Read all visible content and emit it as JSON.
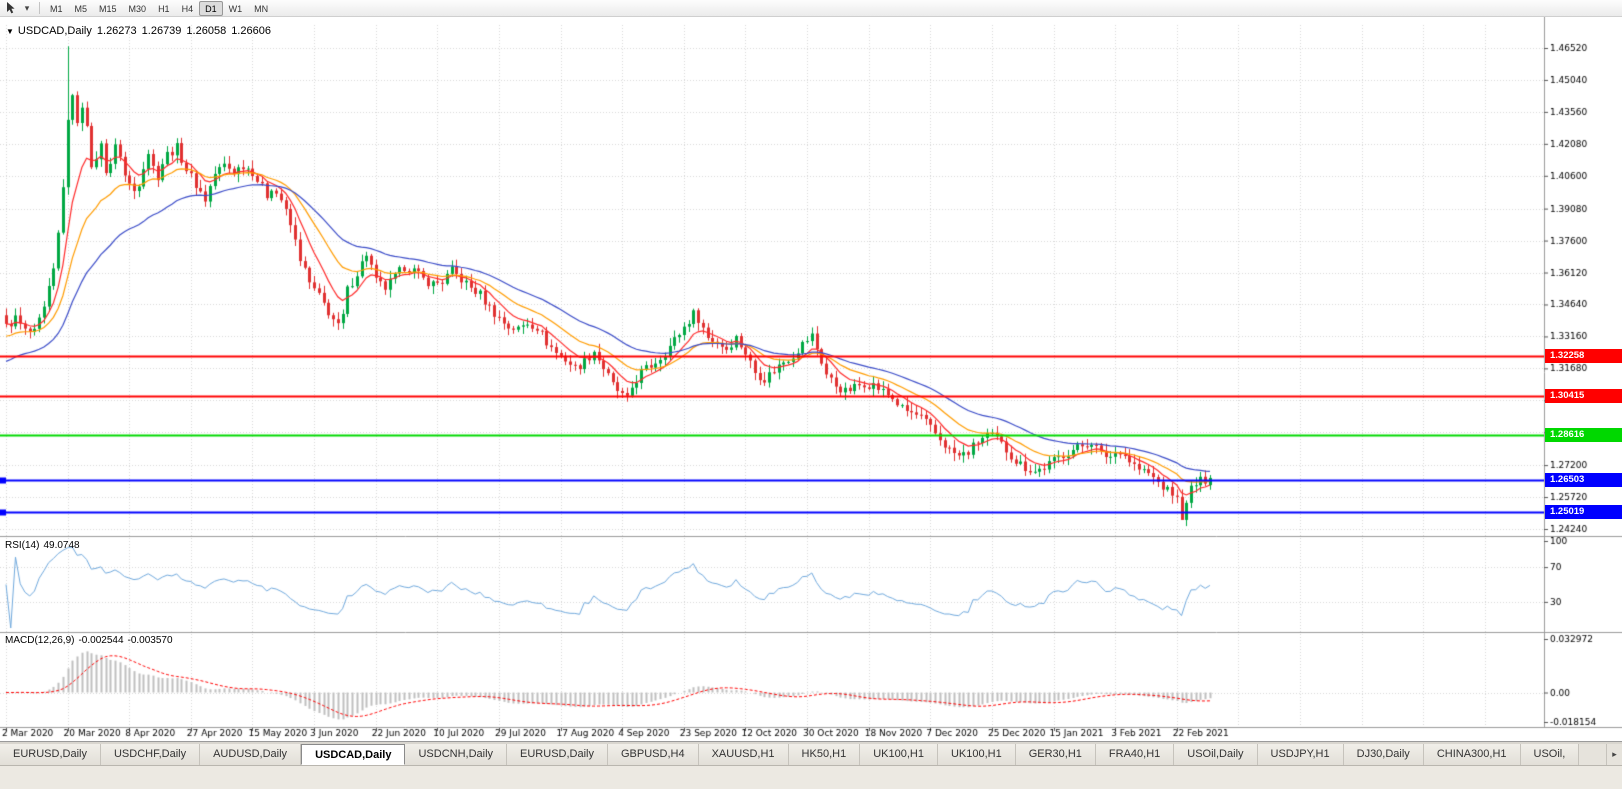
{
  "toolbar": {
    "timeframes": [
      "M1",
      "M5",
      "M15",
      "M30",
      "H1",
      "H4",
      "D1",
      "W1",
      "MN"
    ],
    "active_timeframe": "D1",
    "cursor_icon": "cursor-arrow-icon",
    "dropdown_glyph": "▾"
  },
  "chart": {
    "symbol": "USDCAD,Daily",
    "marker_glyph": "▼",
    "ohlc": {
      "open": "1.26273",
      "high": "1.26739",
      "low": "1.26058",
      "close": "1.26606"
    }
  },
  "rsi_panel": {
    "label": "RSI(14)",
    "value": "49.0748"
  },
  "macd_panel": {
    "label": "MACD(12,26,9)",
    "value_main": "-0.002544",
    "value_signal": "-0.003570"
  },
  "chart_data": {
    "type": "candlestick",
    "symbol": "USDCAD",
    "timeframe": "Daily",
    "bars": 255,
    "last_candle": {
      "open": 1.26273,
      "high": 1.26739,
      "low": 1.26058,
      "close": 1.26606
    },
    "forced_points": {
      "high_bar": 13,
      "high": 1.466,
      "low_bar": 248,
      "low": 1.2468
    },
    "close_anchors": [
      [
        0,
        1.336
      ],
      [
        2,
        1.34
      ],
      [
        4,
        1.334
      ],
      [
        6,
        1.333
      ],
      [
        8,
        1.344
      ],
      [
        10,
        1.362
      ],
      [
        11,
        1.379
      ],
      [
        12,
        1.402
      ],
      [
        13,
        1.43
      ],
      [
        14,
        1.445
      ],
      [
        15,
        1.429
      ],
      [
        16,
        1.439
      ],
      [
        17,
        1.431
      ],
      [
        18,
        1.408
      ],
      [
        19,
        1.415
      ],
      [
        20,
        1.42
      ],
      [
        21,
        1.409
      ],
      [
        22,
        1.412
      ],
      [
        23,
        1.419
      ],
      [
        24,
        1.416
      ],
      [
        25,
        1.406
      ],
      [
        26,
        1.402
      ],
      [
        27,
        1.399
      ],
      [
        28,
        1.403
      ],
      [
        29,
        1.411
      ],
      [
        30,
        1.417
      ],
      [
        31,
        1.41
      ],
      [
        32,
        1.406
      ],
      [
        33,
        1.412
      ],
      [
        34,
        1.416
      ],
      [
        36,
        1.419
      ],
      [
        38,
        1.409
      ],
      [
        40,
        1.402
      ],
      [
        42,
        1.395
      ],
      [
        44,
        1.407
      ],
      [
        46,
        1.411
      ],
      [
        48,
        1.408
      ],
      [
        50,
        1.411
      ],
      [
        52,
        1.408
      ],
      [
        53,
        1.404
      ],
      [
        55,
        1.397
      ],
      [
        56,
        1.401
      ],
      [
        58,
        1.395
      ],
      [
        60,
        1.383
      ],
      [
        62,
        1.368
      ],
      [
        64,
        1.356
      ],
      [
        66,
        1.35
      ],
      [
        68,
        1.343
      ],
      [
        70,
        1.336
      ],
      [
        71,
        1.341
      ],
      [
        72,
        1.353
      ],
      [
        74,
        1.361
      ],
      [
        76,
        1.37
      ],
      [
        77,
        1.364
      ],
      [
        78,
        1.357
      ],
      [
        80,
        1.354
      ],
      [
        82,
        1.359
      ],
      [
        84,
        1.364
      ],
      [
        86,
        1.362
      ],
      [
        88,
        1.358
      ],
      [
        90,
        1.356
      ],
      [
        92,
        1.357
      ],
      [
        94,
        1.362
      ],
      [
        96,
        1.358
      ],
      [
        98,
        1.354
      ],
      [
        100,
        1.351
      ],
      [
        102,
        1.345
      ],
      [
        104,
        1.34
      ],
      [
        106,
        1.336
      ],
      [
        108,
        1.335
      ],
      [
        110,
        1.338
      ],
      [
        112,
        1.336
      ],
      [
        114,
        1.329
      ],
      [
        116,
        1.324
      ],
      [
        118,
        1.321
      ],
      [
        120,
        1.317
      ],
      [
        122,
        1.32
      ],
      [
        124,
        1.325
      ],
      [
        126,
        1.317
      ],
      [
        128,
        1.309
      ],
      [
        130,
        1.304
      ],
      [
        131,
        1.302
      ],
      [
        132,
        1.308
      ],
      [
        134,
        1.315
      ],
      [
        136,
        1.318
      ],
      [
        138,
        1.322
      ],
      [
        140,
        1.327
      ],
      [
        142,
        1.333
      ],
      [
        144,
        1.339
      ],
      [
        145,
        1.342
      ],
      [
        146,
        1.34
      ],
      [
        148,
        1.331
      ],
      [
        150,
        1.329
      ],
      [
        152,
        1.326
      ],
      [
        154,
        1.331
      ],
      [
        156,
        1.324
      ],
      [
        158,
        1.315
      ],
      [
        160,
        1.312
      ],
      [
        162,
        1.316
      ],
      [
        164,
        1.32
      ],
      [
        166,
        1.323
      ],
      [
        168,
        1.328
      ],
      [
        170,
        1.332
      ],
      [
        171,
        1.326
      ],
      [
        173,
        1.314
      ],
      [
        175,
        1.309
      ],
      [
        177,
        1.306
      ],
      [
        179,
        1.308
      ],
      [
        181,
        1.31
      ],
      [
        183,
        1.309
      ],
      [
        185,
        1.306
      ],
      [
        187,
        1.303
      ],
      [
        189,
        1.298
      ],
      [
        191,
        1.296
      ],
      [
        193,
        1.294
      ],
      [
        195,
        1.289
      ],
      [
        197,
        1.284
      ],
      [
        199,
        1.279
      ],
      [
        201,
        1.276
      ],
      [
        203,
        1.278
      ],
      [
        205,
        1.283
      ],
      [
        207,
        1.286
      ],
      [
        209,
        1.284
      ],
      [
        211,
        1.279
      ],
      [
        213,
        1.274
      ],
      [
        215,
        1.271
      ],
      [
        217,
        1.269
      ],
      [
        219,
        1.271
      ],
      [
        221,
        1.274
      ],
      [
        223,
        1.277
      ],
      [
        225,
        1.279
      ],
      [
        227,
        1.281
      ],
      [
        229,
        1.283
      ],
      [
        231,
        1.277
      ],
      [
        233,
        1.276
      ],
      [
        235,
        1.279
      ],
      [
        237,
        1.274
      ],
      [
        239,
        1.27
      ],
      [
        241,
        1.268
      ],
      [
        243,
        1.264
      ],
      [
        245,
        1.26
      ],
      [
        246,
        1.259
      ],
      [
        247,
        1.256
      ],
      [
        248,
        1.2485
      ],
      [
        249,
        1.253
      ],
      [
        250,
        1.2615
      ],
      [
        252,
        1.2645
      ],
      [
        254,
        1.2661
      ]
    ],
    "price_ticks": [
      {
        "label": "1.46520",
        "v": 1.4652
      },
      {
        "label": "1.45040",
        "v": 1.4504
      },
      {
        "label": "1.43560",
        "v": 1.4356
      },
      {
        "label": "1.42080",
        "v": 1.4208
      },
      {
        "label": "1.40600",
        "v": 1.406
      },
      {
        "label": "1.39080",
        "v": 1.3908
      },
      {
        "label": "1.37600",
        "v": 1.376
      },
      {
        "label": "1.36120",
        "v": 1.3612
      },
      {
        "label": "1.34640",
        "v": 1.3464
      },
      {
        "label": "1.33160",
        "v": 1.3316
      },
      {
        "label": "1.31680",
        "v": 1.3168
      },
      {
        "v": 1.302,
        "hidden": true
      },
      {
        "v": 1.2872,
        "hidden": true
      },
      {
        "label": "1.27200",
        "v": 1.272
      },
      {
        "label": "1.25720",
        "v": 1.2572
      },
      {
        "label": "1.24240",
        "v": 1.2424
      }
    ],
    "date_ticks": [
      "2 Mar 2020",
      "20 Mar 2020",
      "8 Apr 2020",
      "27 Apr 2020",
      "15 May 2020",
      "3 Jun 2020",
      "22 Jun 2020",
      "10 Jul 2020",
      "29 Jul 2020",
      "17 Aug 2020",
      "4 Sep 2020",
      "23 Sep 2020",
      "12 Oct 2020",
      "30 Oct 2020",
      "18 Nov 2020",
      "7 Dec 2020",
      "25 Dec 2020",
      "15 Jan 2021",
      "3 Feb 2021",
      "22 Feb 2021"
    ],
    "hlines": [
      {
        "price": 1.32258,
        "label": "1.32258",
        "color": "#ff0000",
        "handles": false
      },
      {
        "price": 1.30415,
        "label": "1.30415",
        "color": "#ff0000",
        "handles": false
      },
      {
        "price": 1.28616,
        "label": "1.28616",
        "color": "#00d800",
        "handles": false
      },
      {
        "price": 1.26503,
        "label": "1.26503",
        "color": "#0000ff",
        "handles": true
      },
      {
        "price": 1.25019,
        "label": "1.25019",
        "color": "#0000ff",
        "handles": true
      }
    ],
    "moving_averages": [
      {
        "period": 8,
        "color": "#ff2a2a",
        "seed": null
      },
      {
        "period": 18,
        "color": "#ff9c00",
        "seed": 1.331
      },
      {
        "period": 35,
        "color": "#3b4cc8",
        "seed": 1.319
      }
    ],
    "indicators": {
      "rsi": {
        "period": 14,
        "current": 49.0748,
        "color": "#6fa8dc",
        "range": [
          0,
          100
        ],
        "axis": [
          {
            "label": "100",
            "v": 100
          },
          {
            "label": "70",
            "v": 70
          },
          {
            "label": "30",
            "v": 30
          }
        ],
        "levels": [
          70,
          30
        ]
      },
      "macd": {
        "fast": 12,
        "slow": 26,
        "signal": 9,
        "current_macd": -0.002544,
        "current_signal": -0.00357,
        "range": [
          -0.018154,
          0.032972
        ],
        "axis": [
          {
            "label": "0.032972",
            "v": 0.032972
          },
          {
            "label": "0.00",
            "v": 0
          },
          {
            "label": "-0.018154",
            "v": -0.018154
          }
        ]
      }
    },
    "colors": {
      "up": "#00a843",
      "down": "#e03131",
      "grid": "#d7d7d7",
      "background": "#ffffff",
      "macd_hist": "#bfbfbf",
      "macd_signal": "#ff0000",
      "axis_text": "#000000"
    }
  },
  "tabs": {
    "scroll_glyph": "▸",
    "items": [
      {
        "label": "EURUSD,Daily"
      },
      {
        "label": "USDCHF,Daily"
      },
      {
        "label": "AUDUSD,Daily"
      },
      {
        "label": "USDCAD,Daily",
        "active": true
      },
      {
        "label": "USDCNH,Daily"
      },
      {
        "label": "EURUSD,Daily"
      },
      {
        "label": "GBPUSD,H4"
      },
      {
        "label": "XAUUSD,H1"
      },
      {
        "label": "HK50,H1"
      },
      {
        "label": "UK100,H1"
      },
      {
        "label": "UK100,H1"
      },
      {
        "label": "GER30,H1"
      },
      {
        "label": "FRA40,H1"
      },
      {
        "label": "USOil,Daily"
      },
      {
        "label": "USDJPY,H1"
      },
      {
        "label": "DJ30,Daily"
      },
      {
        "label": "CHINA300,H1"
      },
      {
        "label": "USOil,"
      }
    ]
  }
}
